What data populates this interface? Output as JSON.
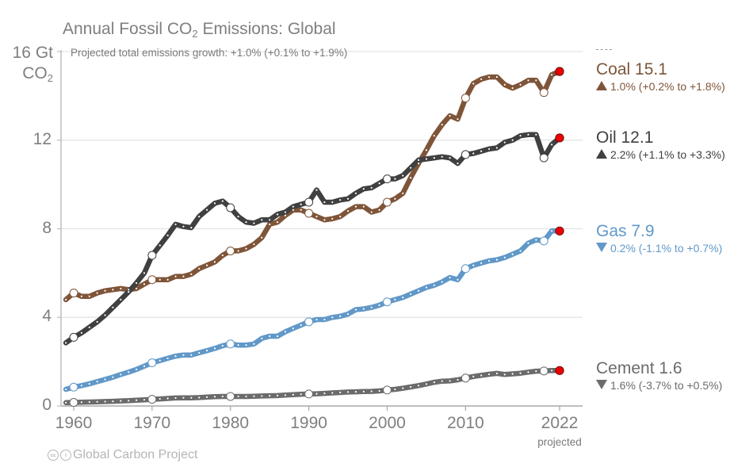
{
  "chart_data": {
    "type": "line",
    "title": "Annual Fossil CO2 Emissions: Global",
    "title_parts": {
      "pre": "Annual Fossil CO",
      "sub": "2",
      "post": " Emissions: Global"
    },
    "subtitle": "Projected total emissions growth: +1.0% (+0.1% to +1.9%)",
    "ylabel": {
      "line1": "16 Gt",
      "line2_pre": "CO",
      "line2_sub": "2"
    },
    "xlabel": "",
    "xlim": [
      1959,
      2025
    ],
    "ylim": [
      0,
      16
    ],
    "y_ticks": [
      0,
      4,
      8,
      12
    ],
    "y_tick_labels": [
      "0",
      "4",
      "8",
      "12"
    ],
    "x_ticks": [
      1960,
      1970,
      1980,
      1990,
      2000,
      2010,
      2022
    ],
    "x_tick_labels": [
      "1960",
      "1970",
      "1980",
      "1990",
      "2000",
      "2010",
      "2022"
    ],
    "x_projected_label": "projected",
    "grid": true,
    "legend_placement": "right",
    "projected_year": 2022,
    "highlight_years": [
      1960,
      1970,
      1980,
      1990,
      2000,
      2010,
      2020
    ],
    "x": [
      1959,
      1960,
      1961,
      1962,
      1963,
      1964,
      1965,
      1966,
      1967,
      1968,
      1969,
      1970,
      1971,
      1972,
      1973,
      1974,
      1975,
      1976,
      1977,
      1978,
      1979,
      1980,
      1981,
      1982,
      1983,
      1984,
      1985,
      1986,
      1987,
      1988,
      1989,
      1990,
      1991,
      1992,
      1993,
      1994,
      1995,
      1996,
      1997,
      1998,
      1999,
      2000,
      2001,
      2002,
      2003,
      2004,
      2005,
      2006,
      2007,
      2008,
      2009,
      2010,
      2011,
      2012,
      2013,
      2014,
      2015,
      2016,
      2017,
      2018,
      2019,
      2020,
      2021,
      2022
    ],
    "series": [
      {
        "name": "Coal",
        "color": "#7f5539",
        "final_value": "15.1",
        "growth": "1.0% (+0.2% to +1.8%)",
        "direction": "up",
        "values": [
          4.8,
          5.1,
          4.95,
          4.95,
          5.1,
          5.2,
          5.25,
          5.3,
          5.25,
          5.3,
          5.5,
          5.7,
          5.7,
          5.7,
          5.85,
          5.85,
          5.95,
          6.2,
          6.35,
          6.5,
          6.8,
          7.0,
          7.0,
          7.1,
          7.3,
          7.6,
          8.2,
          8.3,
          8.6,
          8.85,
          8.85,
          8.7,
          8.55,
          8.4,
          8.45,
          8.55,
          8.8,
          9.0,
          9.0,
          8.75,
          8.85,
          9.2,
          9.35,
          9.6,
          10.3,
          10.95,
          11.55,
          12.2,
          12.7,
          13.1,
          12.95,
          13.9,
          14.55,
          14.75,
          14.85,
          14.85,
          14.5,
          14.35,
          14.5,
          14.7,
          14.7,
          14.15,
          14.95,
          15.1
        ]
      },
      {
        "name": "Oil",
        "color": "#404040",
        "final_value": "12.1",
        "growth": "2.2% (+1.1% to +3.3%)",
        "direction": "up",
        "values": [
          2.85,
          3.1,
          3.3,
          3.55,
          3.8,
          4.1,
          4.45,
          4.8,
          5.15,
          5.55,
          6.0,
          6.8,
          7.25,
          7.7,
          8.2,
          8.1,
          8.05,
          8.55,
          8.85,
          9.15,
          9.25,
          8.95,
          8.55,
          8.3,
          8.25,
          8.4,
          8.4,
          8.65,
          8.75,
          9.0,
          9.1,
          9.2,
          9.75,
          9.2,
          9.2,
          9.3,
          9.35,
          9.6,
          9.8,
          9.85,
          10.05,
          10.25,
          10.25,
          10.4,
          10.75,
          11.1,
          11.15,
          11.2,
          11.25,
          11.2,
          10.95,
          11.35,
          11.4,
          11.5,
          11.6,
          11.65,
          11.9,
          12.0,
          12.2,
          12.25,
          12.25,
          11.2,
          11.8,
          12.1
        ]
      },
      {
        "name": "Gas",
        "color": "#6198c8",
        "final_value": "7.9",
        "growth": "0.2% (-1.1% to +0.7%)",
        "direction": "down",
        "values": [
          0.75,
          0.85,
          0.92,
          1.0,
          1.1,
          1.2,
          1.3,
          1.42,
          1.53,
          1.65,
          1.8,
          1.95,
          2.05,
          2.15,
          2.25,
          2.3,
          2.3,
          2.4,
          2.5,
          2.6,
          2.72,
          2.8,
          2.75,
          2.75,
          2.8,
          3.05,
          3.15,
          3.15,
          3.35,
          3.5,
          3.65,
          3.8,
          3.9,
          3.9,
          4.0,
          4.05,
          4.15,
          4.35,
          4.38,
          4.45,
          4.55,
          4.7,
          4.8,
          4.9,
          5.05,
          5.2,
          5.35,
          5.45,
          5.6,
          5.8,
          5.7,
          6.2,
          6.35,
          6.45,
          6.55,
          6.6,
          6.7,
          6.85,
          7.0,
          7.35,
          7.5,
          7.45,
          7.9,
          7.9
        ]
      },
      {
        "name": "Cement",
        "color": "#6b6b6b",
        "final_value": "1.6",
        "growth": "1.6% (-3.7% to +0.5%)",
        "direction": "down",
        "values": [
          0.15,
          0.16,
          0.17,
          0.18,
          0.19,
          0.2,
          0.21,
          0.23,
          0.24,
          0.26,
          0.28,
          0.3,
          0.32,
          0.34,
          0.36,
          0.37,
          0.37,
          0.38,
          0.4,
          0.42,
          0.43,
          0.43,
          0.43,
          0.43,
          0.44,
          0.45,
          0.46,
          0.47,
          0.49,
          0.51,
          0.53,
          0.54,
          0.55,
          0.57,
          0.59,
          0.61,
          0.63,
          0.64,
          0.65,
          0.66,
          0.68,
          0.72,
          0.75,
          0.8,
          0.86,
          0.92,
          0.99,
          1.07,
          1.12,
          1.13,
          1.18,
          1.26,
          1.33,
          1.38,
          1.43,
          1.47,
          1.42,
          1.45,
          1.48,
          1.53,
          1.57,
          1.58,
          1.6,
          1.6
        ]
      }
    ]
  },
  "credit": {
    "icons": [
      "cc-icon",
      "by-icon"
    ],
    "text": "Global Carbon Project"
  }
}
